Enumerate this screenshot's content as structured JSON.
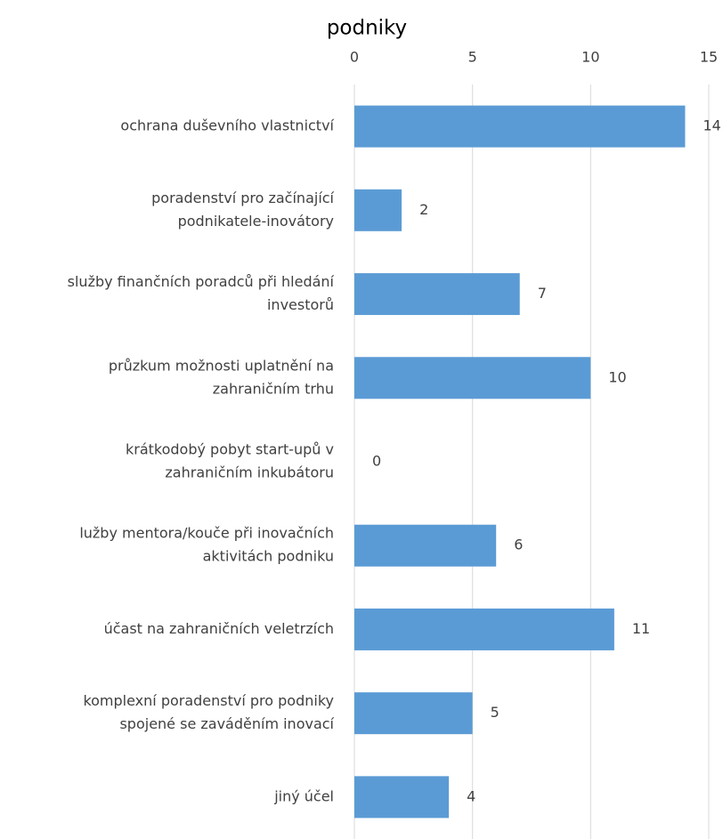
{
  "chart_data": {
    "type": "barh",
    "title": "podniky",
    "categories": [
      [
        "ochrana duševního vlastnictví"
      ],
      [
        "poradenství pro začínající",
        "podnikatele-inovátory"
      ],
      [
        "služby finančních poradců při hledání",
        "investorů"
      ],
      [
        "průzkum možnosti uplatnění na",
        "zahraničním trhu"
      ],
      [
        "krátkodobý pobyt start-upů v",
        "zahraničním inkubátoru"
      ],
      [
        "lužby mentora/kouče při inovačních",
        "aktivitách podniku"
      ],
      [
        "účast na zahraničních veletrzích"
      ],
      [
        "komplexní poradenství pro podniky",
        "spojené se zaváděním inovací"
      ],
      [
        "jiný účel"
      ]
    ],
    "values": [
      14,
      2,
      7,
      10,
      0,
      6,
      11,
      5,
      4
    ],
    "color": "#5b9bd5",
    "xlim": [
      0,
      15
    ],
    "xticks": [
      0,
      5,
      10,
      15
    ],
    "grid": true
  }
}
